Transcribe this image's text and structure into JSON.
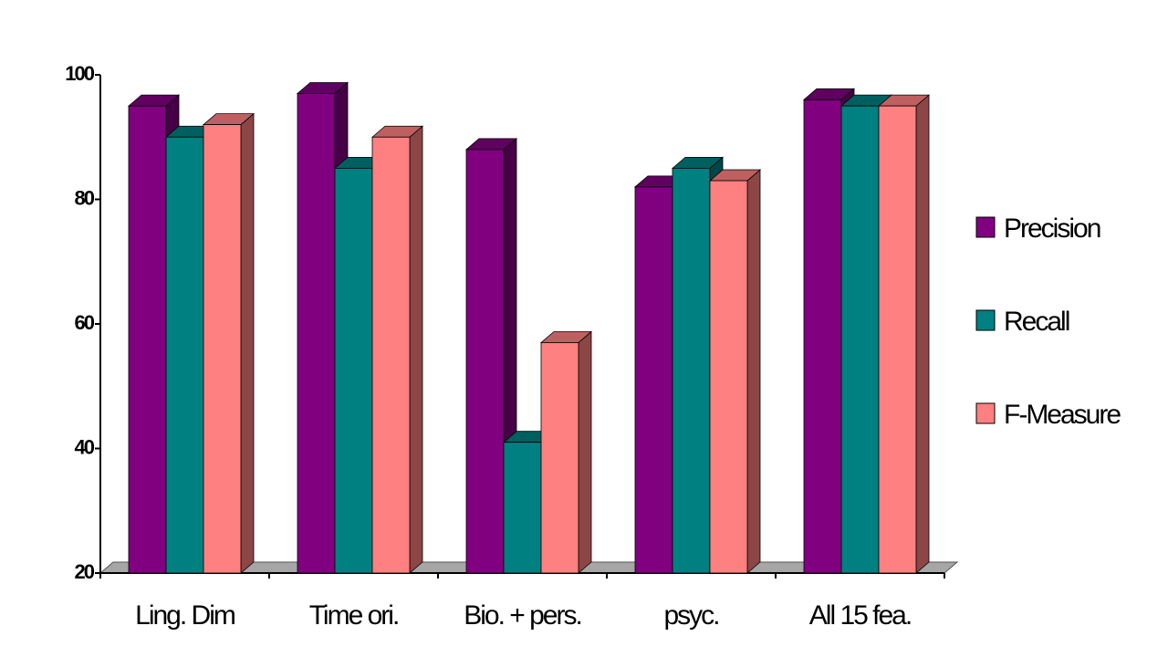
{
  "chart_data": {
    "type": "bar",
    "categories": [
      "Ling. Dim",
      "Time ori.",
      "Bio. + pers.",
      "psyc.",
      "All 15 fea."
    ],
    "series": [
      {
        "name": "Precision",
        "values": [
          95,
          97,
          88,
          82,
          96
        ]
      },
      {
        "name": "Recall",
        "values": [
          90,
          85,
          41,
          85,
          95
        ]
      },
      {
        "name": "F-Measure",
        "values": [
          92,
          90,
          57,
          83,
          95
        ]
      }
    ],
    "ylim": [
      20,
      100
    ],
    "yticks": [
      20,
      40,
      60,
      80,
      100
    ],
    "title": "",
    "xlabel": "",
    "ylabel": "",
    "legend_position": "right",
    "colors": {
      "Precision": "#800080",
      "Recall": "#008080",
      "F-Measure": "#ff8080",
      "floor": "#a6a6a6"
    }
  }
}
